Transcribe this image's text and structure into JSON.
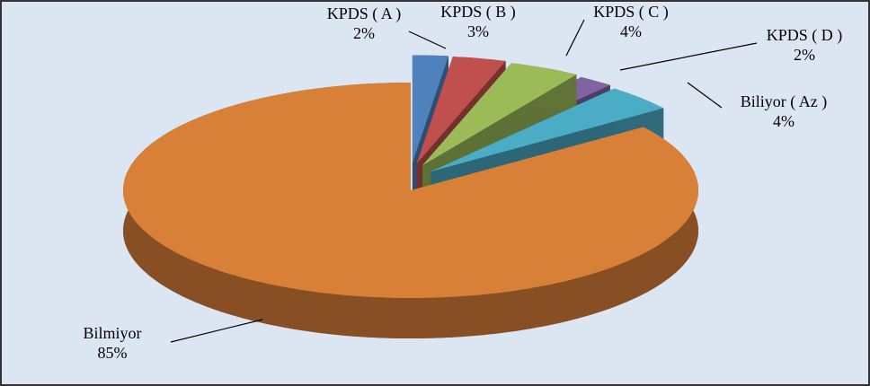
{
  "chart_data": {
    "type": "pie",
    "categories": [
      "KPDS ( A )",
      "KPDS ( B )",
      "KPDS ( C )",
      "KPDS ( D )",
      "Biliyor ( Az )",
      "Bilmiyor"
    ],
    "values": [
      2,
      3,
      4,
      2,
      4,
      85
    ],
    "value_labels": [
      "2%",
      "3%",
      "4%",
      "2%",
      "4%",
      "85%"
    ],
    "colors": [
      "#4f81bd",
      "#c0504d",
      "#9bbb59",
      "#8064a2",
      "#4bacc6",
      "#d98038"
    ],
    "exploded": [
      true,
      true,
      true,
      true,
      true,
      false
    ]
  }
}
